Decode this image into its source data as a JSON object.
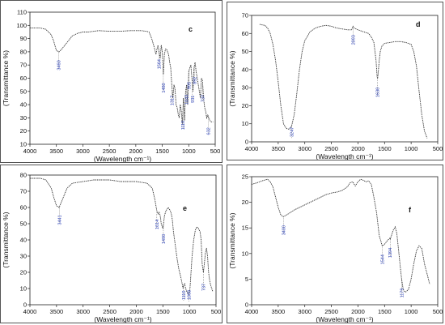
{
  "chart_data": [
    {
      "type": "line",
      "panel_letter": "c",
      "xlabel": "(Wavelength cm⁻¹)",
      "ylabel": "(Transmittance %)",
      "xlim": [
        4000,
        500
      ],
      "ylim": [
        10,
        110
      ],
      "xticks": [
        4000,
        3500,
        3000,
        2500,
        2000,
        1500,
        1000,
        500
      ],
      "yticks": [
        10,
        20,
        30,
        40,
        50,
        60,
        70,
        80,
        90,
        100,
        110
      ],
      "series": [
        {
          "x": [
            4000,
            3800,
            3700,
            3600,
            3550,
            3500,
            3450,
            3400,
            3300,
            3200,
            3100,
            3000,
            2900,
            2700,
            2500,
            2300,
            2100,
            1900,
            1800,
            1750,
            1700,
            1650,
            1620,
            1600,
            1580,
            1560,
            1540,
            1520,
            1500,
            1480,
            1460,
            1440,
            1420,
            1400,
            1380,
            1360,
            1340,
            1320,
            1300,
            1280,
            1260,
            1240,
            1220,
            1200,
            1180,
            1160,
            1140,
            1120,
            1100,
            1080,
            1060,
            1040,
            1020,
            1000,
            980,
            960,
            940,
            920,
            900,
            880,
            860,
            840,
            820,
            800,
            780,
            760,
            740,
            720,
            700,
            680,
            660,
            640,
            620,
            600,
            580,
            560,
            540
          ],
          "y": [
            98,
            98,
            97,
            93,
            88,
            81,
            80,
            82,
            87,
            92,
            94,
            95,
            95,
            96,
            95.5,
            95.5,
            96,
            96,
            95.5,
            95,
            90,
            83,
            78,
            82,
            85,
            80,
            75,
            85,
            80,
            63,
            78,
            82,
            82,
            80,
            78,
            72,
            68,
            55,
            45,
            55,
            52,
            40,
            38,
            33,
            30,
            40,
            35,
            25,
            45,
            28,
            50,
            55,
            40,
            65,
            68,
            70,
            60,
            50,
            68,
            72,
            65,
            60,
            55,
            50,
            45,
            60,
            58,
            45,
            38,
            35,
            30,
            32,
            30,
            28,
            27,
            27,
            27
          ]
        }
      ],
      "annotations": [
        {
          "label": "3460",
          "x": 3460
        },
        {
          "label": "1564",
          "x": 1564
        },
        {
          "label": "1480",
          "x": 1480
        },
        {
          "label": "1317",
          "x": 1317
        },
        {
          "label": "1110",
          "x": 1110
        },
        {
          "label": "1043",
          "x": 1043
        },
        {
          "label": "995",
          "x": 995
        },
        {
          "label": "931",
          "x": 931
        },
        {
          "label": "892",
          "x": 892
        },
        {
          "label": "737",
          "x": 737
        },
        {
          "label": "632",
          "x": 632
        }
      ]
    },
    {
      "type": "line",
      "panel_letter": "d",
      "xlabel": "(Wavelength cm⁻¹)",
      "ylabel": "(Transmittance %)",
      "xlim": [
        4000,
        500
      ],
      "ylim": [
        0,
        70
      ],
      "xticks": [
        4000,
        3500,
        3000,
        2500,
        2000,
        1500,
        1000,
        500
      ],
      "yticks": [
        0,
        10,
        20,
        30,
        40,
        50,
        60,
        70
      ],
      "series": [
        {
          "x": [
            3850,
            3750,
            3700,
            3650,
            3600,
            3550,
            3500,
            3450,
            3400,
            3350,
            3300,
            3250,
            3200,
            3150,
            3100,
            3050,
            3000,
            2900,
            2800,
            2700,
            2600,
            2500,
            2400,
            2300,
            2200,
            2120,
            2093,
            2070,
            2000,
            1900,
            1800,
            1750,
            1700,
            1660,
            1640,
            1630,
            1620,
            1600,
            1580,
            1550,
            1500,
            1400,
            1300,
            1200,
            1100,
            1000,
            950,
            900,
            850,
            800,
            750,
            700
          ],
          "y": [
            65,
            64.5,
            63,
            60,
            54,
            45,
            33,
            20,
            10,
            7.5,
            7,
            8.5,
            15,
            27,
            40,
            50,
            56,
            61,
            63,
            64,
            64.5,
            64,
            63,
            62.5,
            62,
            62,
            64,
            63,
            62,
            61,
            60,
            58,
            55,
            45,
            36,
            35,
            38,
            45,
            50,
            53,
            54.5,
            55,
            55.5,
            55.5,
            55,
            54,
            50,
            42,
            28,
            15,
            6,
            2
          ]
        }
      ],
      "annotations": [
        {
          "label": "3247",
          "x": 3247
        },
        {
          "label": "2093",
          "x": 2093
        },
        {
          "label": "1630",
          "x": 1630
        }
      ]
    },
    {
      "type": "line",
      "panel_letter": "e",
      "xlabel": "(Wavelength cm⁻¹)",
      "ylabel": "(Transmittance %)",
      "xlim": [
        4000,
        500
      ],
      "ylim": [
        0,
        80
      ],
      "xticks": [
        4000,
        3500,
        3000,
        2500,
        2000,
        1500,
        1000,
        500
      ],
      "yticks": [
        0,
        10,
        20,
        30,
        40,
        50,
        60,
        70,
        80
      ],
      "series": [
        {
          "x": [
            4000,
            3800,
            3700,
            3600,
            3550,
            3500,
            3450,
            3400,
            3300,
            3200,
            3000,
            2800,
            2500,
            2300,
            2000,
            1800,
            1700,
            1650,
            1614,
            1590,
            1570,
            1550,
            1530,
            1500,
            1490,
            1470,
            1440,
            1400,
            1380,
            1360,
            1340,
            1320,
            1300,
            1260,
            1230,
            1200,
            1170,
            1150,
            1120,
            1110,
            1090,
            1070,
            1050,
            1030,
            1008,
            990,
            970,
            950,
            920,
            890,
            860,
            830,
            800,
            780,
            760,
            737,
            720,
            700,
            680,
            660,
            640,
            620,
            600,
            580,
            560
          ],
          "y": [
            78,
            78,
            77,
            72,
            66,
            61,
            60,
            64,
            72,
            75,
            76,
            77,
            77,
            76,
            76,
            75,
            72,
            65,
            58,
            56,
            57,
            55,
            50,
            47,
            49,
            55,
            58,
            60,
            59,
            58,
            56,
            52,
            45,
            35,
            28,
            22,
            18,
            15,
            10,
            12,
            13,
            10,
            8,
            7,
            6.5,
            10,
            20,
            30,
            40,
            46,
            48,
            47,
            45,
            40,
            25,
            20,
            25,
            32,
            35,
            30,
            20,
            15,
            12,
            10,
            8
          ]
        }
      ],
      "annotations": [
        {
          "label": "3441",
          "x": 3441
        },
        {
          "label": "1614",
          "x": 1614
        },
        {
          "label": "1490",
          "x": 1490
        },
        {
          "label": "1110",
          "x": 1110
        },
        {
          "label": "1008",
          "x": 1008
        },
        {
          "label": "737",
          "x": 737
        }
      ]
    },
    {
      "type": "line",
      "panel_letter": "f",
      "xlabel": "(Wavelength cm⁻¹)",
      "ylabel": "(Transmittance %)",
      "xlim": [
        4000,
        500
      ],
      "ylim": [
        0,
        25
      ],
      "xticks": [
        4000,
        3500,
        3000,
        2500,
        2000,
        1500,
        1000,
        500
      ],
      "yticks": [
        0,
        5,
        10,
        15,
        20,
        25
      ],
      "series": [
        {
          "x": [
            4000,
            3900,
            3800,
            3700,
            3650,
            3600,
            3550,
            3500,
            3450,
            3400,
            3300,
            3200,
            3000,
            2800,
            2600,
            2500,
            2400,
            2300,
            2200,
            2150,
            2100,
            2050,
            2000,
            1950,
            1900,
            1850,
            1800,
            1750,
            1700,
            1650,
            1600,
            1544,
            1500,
            1450,
            1400,
            1394,
            1370,
            1340,
            1300,
            1270,
            1240,
            1200,
            1179,
            1150,
            1120,
            1100,
            1050,
            1000,
            950,
            900,
            850,
            800,
            750,
            700,
            650
          ],
          "y": [
            23.5,
            23.8,
            24.2,
            24.5,
            24,
            23,
            21,
            19,
            17.5,
            17.2,
            17.8,
            18.5,
            19.5,
            20.5,
            21.5,
            21.8,
            22,
            22.3,
            23,
            23.8,
            24,
            23.2,
            24,
            24.5,
            24.3,
            24,
            24.2,
            23.5,
            21,
            18,
            13.5,
            11.5,
            11.8,
            12.5,
            13,
            12.8,
            13.5,
            14.5,
            15.2,
            14,
            11,
            7,
            5,
            3,
            2.5,
            2.5,
            3,
            5,
            8,
            10.5,
            11.5,
            11,
            8,
            6,
            4
          ]
        }
      ],
      "annotations": [
        {
          "label": "3400",
          "x": 3400
        },
        {
          "label": "1544",
          "x": 1544
        },
        {
          "label": "1394",
          "x": 1394
        },
        {
          "label": "1179",
          "x": 1179
        }
      ]
    }
  ]
}
